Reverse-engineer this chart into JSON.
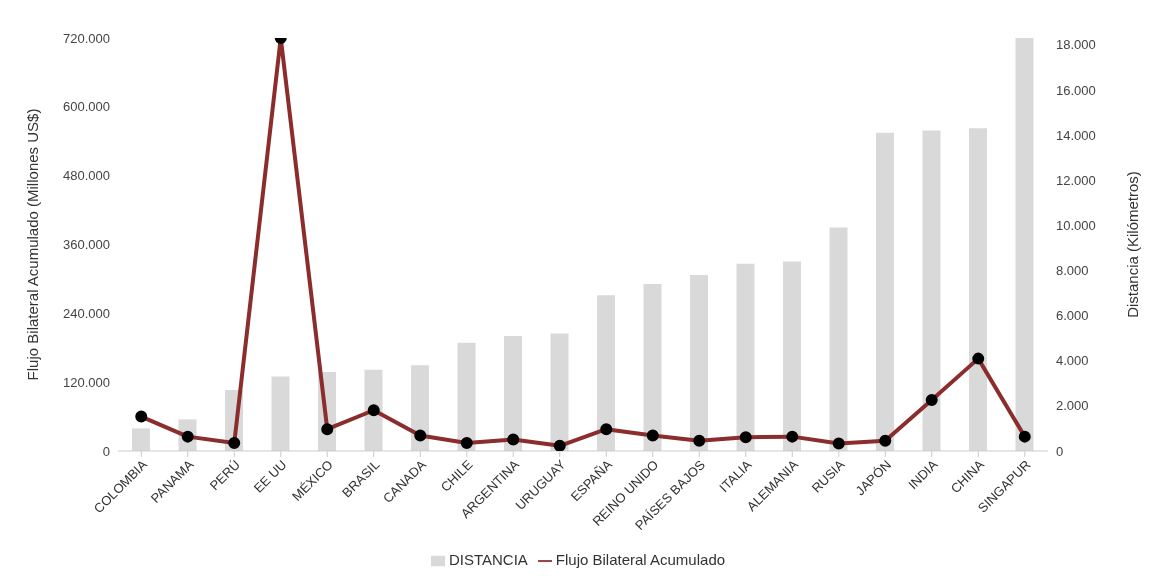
{
  "chart_data": {
    "type": "bar",
    "categories": [
      "COLOMBIA",
      "PANAMA",
      "PERÚ",
      "EE UU",
      "MÉXICO",
      "BRASIL",
      "CANADA",
      "CHILE",
      "ARGENTINA",
      "URUGUAY",
      "ESPAÑA",
      "REINO UNIDO",
      "PAÍSES BAJOS",
      "ITALIA",
      "ALEMANIA",
      "RUSIA",
      "JAPÓN",
      "INDIA",
      "CHINA",
      "SINGAPUR"
    ],
    "series": [
      {
        "name": "DISTANCIA",
        "axis": "y2",
        "color": "#d9d9d9",
        "values": [
          1000,
          1400,
          2700,
          3300,
          3500,
          3600,
          3800,
          4800,
          5100,
          5200,
          6900,
          7400,
          7800,
          8300,
          8400,
          9900,
          14100,
          14200,
          14300,
          18300
        ]
      },
      {
        "name": "Flujo Bilateral Acumulado",
        "type": "line",
        "color": "#8b2d2d",
        "marker": "circle",
        "values": [
          60000,
          25000,
          14000,
          720000,
          38000,
          71000,
          27000,
          14000,
          20000,
          9000,
          38000,
          27000,
          18000,
          24000,
          25000,
          13000,
          18000,
          89000,
          161000,
          25000
        ]
      }
    ],
    "ylabel": "Flujo Bilateral Acumulado (Millones US$)",
    "y2label": "Distancia (Kilómetros)",
    "ylim": [
      0,
      720000
    ],
    "yticks": [
      0,
      {
        "value": 120000,
        "label": "120.000"
      },
      {
        "value": 240000,
        "label": "240.000"
      },
      {
        "value": 360000,
        "label": "360.000"
      },
      {
        "value": 480000,
        "label": "480.000"
      },
      {
        "value": 600000,
        "label": "600.000"
      },
      {
        "value": 720000,
        "label": "720.000"
      }
    ],
    "y2lim": [
      0,
      18300
    ],
    "y2ticks": [
      0,
      {
        "value": 2000,
        "label": "2.000"
      },
      {
        "value": 4000,
        "label": "4.000"
      },
      {
        "value": 6000,
        "label": "6.000"
      },
      {
        "value": 8000,
        "label": "8.000"
      },
      {
        "value": 10000,
        "label": "10.000"
      },
      {
        "value": 12000,
        "label": "12.000"
      },
      {
        "value": 14000,
        "label": "14.000"
      },
      {
        "value": 16000,
        "label": "16.000"
      },
      {
        "value": 18000,
        "label": "18.000"
      }
    ],
    "grid": false,
    "legend": "bottom"
  }
}
